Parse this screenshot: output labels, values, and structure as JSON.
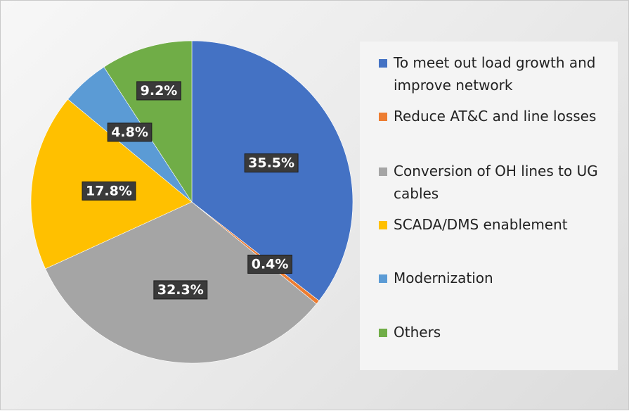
{
  "chart_data": {
    "type": "pie",
    "title": "",
    "legend_position": "right",
    "slices": [
      {
        "label": "To meet out load growth and improve network",
        "value": 35.5,
        "display": "35.5%",
        "color": "#4472C4"
      },
      {
        "label": "Reduce AT&C and line losses",
        "value": 0.4,
        "display": "0.4%",
        "color": "#ED7D31"
      },
      {
        "label": "Conversion of OH lines to UG cables",
        "value": 32.3,
        "display": "32.3%",
        "color": "#A5A5A5"
      },
      {
        "label": "SCADA/DMS enablement",
        "value": 17.8,
        "display": "17.8%",
        "color": "#FFC000"
      },
      {
        "label": "Modernization",
        "value": 4.8,
        "display": "4.8%",
        "color": "#5B9BD5"
      },
      {
        "label": "Others",
        "value": 9.2,
        "display": "9.2%",
        "color": "#70AD47"
      }
    ]
  }
}
